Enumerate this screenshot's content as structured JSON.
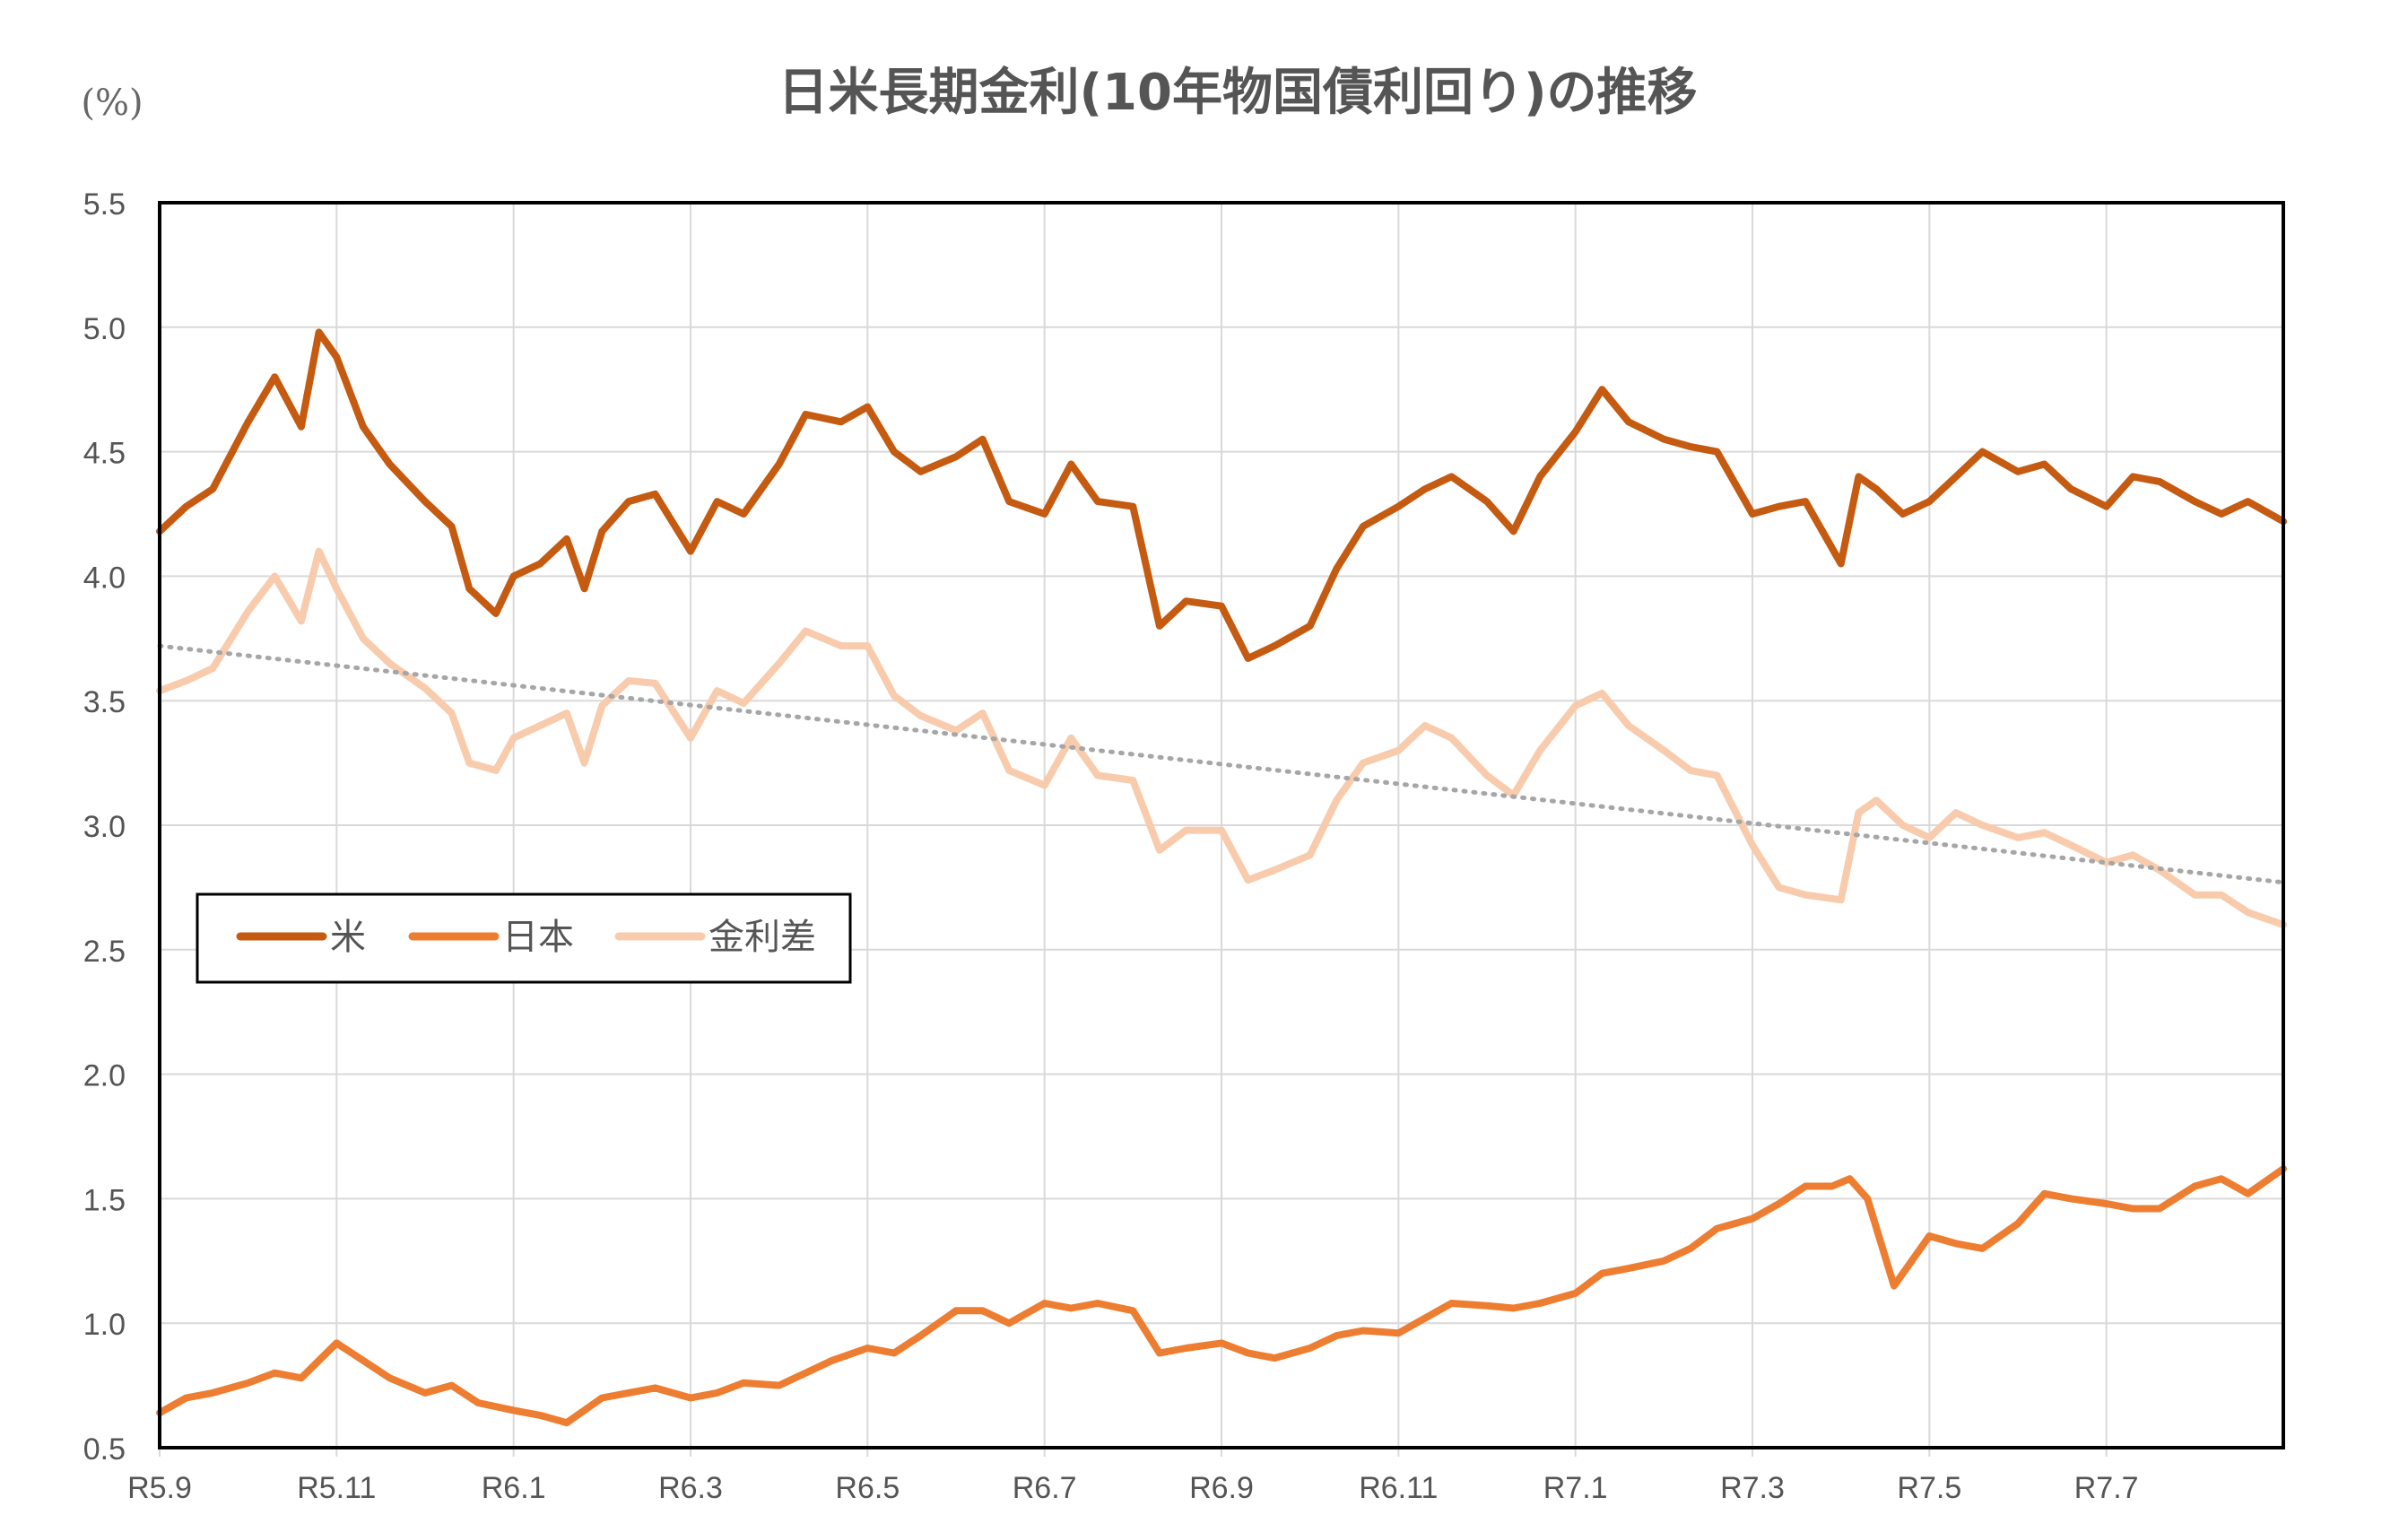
{
  "chart_data": {
    "type": "line",
    "title": "日米長期金利(10年物国債利回り)の推移",
    "unit_label": "(%)",
    "ylim": [
      0.5,
      5.5
    ],
    "yticks": [
      "0.5",
      "1.0",
      "1.5",
      "2.0",
      "2.5",
      "3.0",
      "3.5",
      "4.0",
      "4.5",
      "5.0",
      "5.5"
    ],
    "xrange": [
      0,
      24
    ],
    "xticks": [
      {
        "label": "R5.9",
        "x": 0
      },
      {
        "label": "R5.11",
        "x": 2
      },
      {
        "label": "R6.1",
        "x": 4
      },
      {
        "label": "R6.3",
        "x": 6
      },
      {
        "label": "R6.5",
        "x": 8
      },
      {
        "label": "R6.7",
        "x": 10
      },
      {
        "label": "R6.9",
        "x": 12
      },
      {
        "label": "R6.11",
        "x": 14
      },
      {
        "label": "R7.1",
        "x": 16
      },
      {
        "label": "R7.3",
        "x": 18
      },
      {
        "label": "R7.5",
        "x": 20
      },
      {
        "label": "R7.7",
        "x": 22
      }
    ],
    "legend": {
      "position": "middle-left",
      "entries": [
        "米",
        "日本",
        "金利差"
      ]
    },
    "colors": {
      "us": "#C55A11",
      "japan": "#ED7D31",
      "spread": "#F8CBAD",
      "trend": "#A6A6A6",
      "grid": "#D9D9D9",
      "axis": "#000000"
    },
    "series": [
      {
        "name": "米",
        "key": "us",
        "x": [
          0,
          0.3,
          0.6,
          1.0,
          1.3,
          1.6,
          1.8,
          2.0,
          2.3,
          2.6,
          3.0,
          3.3,
          3.5,
          3.8,
          4.0,
          4.3,
          4.6,
          4.8,
          5.0,
          5.3,
          5.6,
          6.0,
          6.3,
          6.6,
          7.0,
          7.3,
          7.7,
          8.0,
          8.3,
          8.6,
          9.0,
          9.3,
          9.6,
          10.0,
          10.3,
          10.6,
          11.0,
          11.3,
          11.6,
          12.0,
          12.3,
          12.6,
          13.0,
          13.3,
          13.6,
          14.0,
          14.3,
          14.6,
          15.0,
          15.3,
          15.6,
          16.0,
          16.3,
          16.6,
          17.0,
          17.3,
          17.6,
          18.0,
          18.3,
          18.6,
          19.0,
          19.2,
          19.4,
          19.7,
          20.0,
          20.3,
          20.6,
          21.0,
          21.3,
          21.6,
          22.0,
          22.3,
          22.6,
          23.0,
          23.3,
          23.6,
          24.0
        ],
        "values": [
          4.18,
          4.28,
          4.35,
          4.62,
          4.8,
          4.6,
          4.98,
          4.88,
          4.6,
          4.45,
          4.3,
          4.2,
          3.95,
          3.85,
          4.0,
          4.05,
          4.15,
          3.95,
          4.18,
          4.3,
          4.33,
          4.1,
          4.3,
          4.25,
          4.45,
          4.65,
          4.62,
          4.68,
          4.5,
          4.42,
          4.48,
          4.55,
          4.3,
          4.25,
          4.45,
          4.3,
          4.28,
          3.8,
          3.9,
          3.88,
          3.67,
          3.72,
          3.8,
          4.03,
          4.2,
          4.28,
          4.35,
          4.4,
          4.3,
          4.18,
          4.4,
          4.58,
          4.75,
          4.62,
          4.55,
          4.52,
          4.5,
          4.25,
          4.28,
          4.3,
          4.05,
          4.4,
          4.35,
          4.25,
          4.3,
          4.4,
          4.5,
          4.42,
          4.45,
          4.35,
          4.28,
          4.4,
          4.38,
          4.3,
          4.25,
          4.3,
          4.22
        ]
      },
      {
        "name": "日本",
        "key": "japan",
        "x": [
          0,
          0.3,
          0.6,
          1.0,
          1.3,
          1.6,
          2.0,
          2.3,
          2.6,
          3.0,
          3.3,
          3.6,
          4.0,
          4.3,
          4.6,
          5.0,
          5.3,
          5.6,
          6.0,
          6.3,
          6.6,
          7.0,
          7.3,
          7.6,
          8.0,
          8.3,
          8.6,
          9.0,
          9.3,
          9.6,
          10.0,
          10.3,
          10.6,
          11.0,
          11.3,
          11.6,
          12.0,
          12.3,
          12.6,
          13.0,
          13.3,
          13.6,
          14.0,
          14.3,
          14.6,
          15.0,
          15.3,
          15.6,
          16.0,
          16.3,
          16.6,
          17.0,
          17.3,
          17.6,
          18.0,
          18.3,
          18.6,
          18.9,
          19.1,
          19.3,
          19.6,
          20.0,
          20.3,
          20.6,
          21.0,
          21.3,
          21.6,
          22.0,
          22.3,
          22.6,
          23.0,
          23.3,
          23.6,
          24.0
        ],
        "values": [
          0.64,
          0.7,
          0.72,
          0.76,
          0.8,
          0.78,
          0.92,
          0.85,
          0.78,
          0.72,
          0.75,
          0.68,
          0.65,
          0.63,
          0.6,
          0.7,
          0.72,
          0.74,
          0.7,
          0.72,
          0.76,
          0.75,
          0.8,
          0.85,
          0.9,
          0.88,
          0.95,
          1.05,
          1.05,
          1.0,
          1.08,
          1.06,
          1.08,
          1.05,
          0.88,
          0.9,
          0.92,
          0.88,
          0.86,
          0.9,
          0.95,
          0.97,
          0.96,
          1.02,
          1.08,
          1.07,
          1.06,
          1.08,
          1.12,
          1.2,
          1.22,
          1.25,
          1.3,
          1.38,
          1.42,
          1.48,
          1.55,
          1.55,
          1.58,
          1.5,
          1.15,
          1.35,
          1.32,
          1.3,
          1.4,
          1.52,
          1.5,
          1.48,
          1.46,
          1.46,
          1.55,
          1.58,
          1.52,
          1.62
        ]
      },
      {
        "name": "金利差",
        "key": "spread",
        "x": [
          0,
          0.3,
          0.6,
          1.0,
          1.3,
          1.6,
          1.8,
          2.0,
          2.3,
          2.6,
          3.0,
          3.3,
          3.5,
          3.8,
          4.0,
          4.3,
          4.6,
          4.8,
          5.0,
          5.3,
          5.6,
          6.0,
          6.3,
          6.6,
          7.0,
          7.3,
          7.7,
          8.0,
          8.3,
          8.6,
          9.0,
          9.3,
          9.6,
          10.0,
          10.3,
          10.6,
          11.0,
          11.3,
          11.6,
          12.0,
          12.3,
          12.6,
          13.0,
          13.3,
          13.6,
          14.0,
          14.3,
          14.6,
          15.0,
          15.3,
          15.6,
          16.0,
          16.3,
          16.6,
          17.0,
          17.3,
          17.6,
          18.0,
          18.3,
          18.6,
          19.0,
          19.2,
          19.4,
          19.7,
          20.0,
          20.3,
          20.6,
          21.0,
          21.3,
          21.6,
          22.0,
          22.3,
          22.6,
          23.0,
          23.3,
          23.6,
          24.0
        ],
        "values": [
          3.54,
          3.58,
          3.63,
          3.86,
          4.0,
          3.82,
          4.1,
          3.95,
          3.75,
          3.65,
          3.55,
          3.45,
          3.25,
          3.22,
          3.35,
          3.4,
          3.45,
          3.25,
          3.48,
          3.58,
          3.57,
          3.35,
          3.54,
          3.49,
          3.65,
          3.78,
          3.72,
          3.72,
          3.52,
          3.44,
          3.38,
          3.45,
          3.22,
          3.16,
          3.35,
          3.2,
          3.18,
          2.9,
          2.98,
          2.98,
          2.78,
          2.82,
          2.88,
          3.1,
          3.25,
          3.3,
          3.4,
          3.35,
          3.2,
          3.12,
          3.3,
          3.48,
          3.53,
          3.4,
          3.3,
          3.22,
          3.2,
          2.92,
          2.75,
          2.72,
          2.7,
          3.05,
          3.1,
          3.0,
          2.95,
          3.05,
          3.0,
          2.95,
          2.97,
          2.92,
          2.85,
          2.88,
          2.82,
          2.72,
          2.72,
          2.65,
          2.6
        ]
      },
      {
        "name": "金利差 (近似直線)",
        "key": "trend",
        "x": [
          0,
          24
        ],
        "values": [
          3.72,
          2.77
        ]
      }
    ]
  }
}
